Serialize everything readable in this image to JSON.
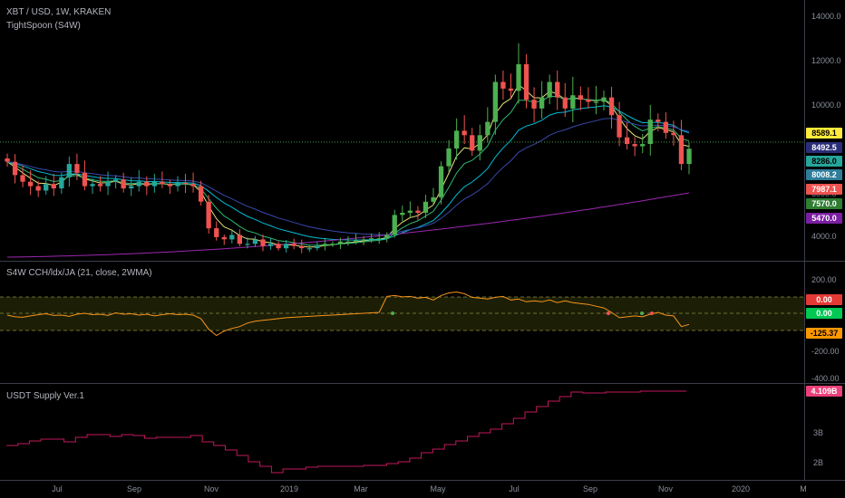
{
  "main_pane": {
    "title": "XBT / USD, 1W, KRAKEN",
    "indicator": "TightSpoon (S4W)",
    "y_ticks": [
      "14000.0",
      "12000.0",
      "10000.0",
      "6000.0",
      "4000.0"
    ],
    "price_tags": [
      {
        "label": "8589.1",
        "bg": "#ffeb3b",
        "fg": "#000000"
      },
      {
        "label": "8492.5",
        "bg": "#2a2e7a",
        "fg": "#ffffff"
      },
      {
        "label": "8286.0",
        "bg": "#26a69a",
        "fg": "#000000"
      },
      {
        "label": "8008.2",
        "bg": "#2e7d9a",
        "fg": "#ffffff"
      },
      {
        "label": "7987.1",
        "bg": "#ef5350",
        "fg": "#ffffff"
      },
      {
        "label": "7570.0",
        "bg": "#2e7d32",
        "fg": "#ffffff"
      },
      {
        "label": "5470.0",
        "bg": "#7b1fa2",
        "fg": "#ffffff"
      }
    ]
  },
  "osc_pane": {
    "title": "S4W CCH/ldx/JA (21, close, 2WMA)",
    "y_ticks": [
      "200.00",
      "-200.00",
      "-400.00"
    ],
    "tags": [
      {
        "label": "0.00",
        "bg": "#e53935",
        "fg": "#ffffff"
      },
      {
        "label": "0.00",
        "bg": "#00c853",
        "fg": "#ffffff"
      },
      {
        "label": "-125.37",
        "bg": "#ff9800",
        "fg": "#000000"
      }
    ]
  },
  "supply_pane": {
    "title": "USDT Supply Ver.1",
    "y_ticks": [
      "3B",
      "2B"
    ],
    "tag": {
      "label": "4.109B",
      "bg": "#ec407a",
      "fg": "#ffffff"
    }
  },
  "x_axis": [
    "Jul",
    "Sep",
    "Nov",
    "2019",
    "Mar",
    "May",
    "Jul",
    "Sep",
    "Nov",
    "2020",
    "M"
  ],
  "colors": {
    "up": "#26a69a",
    "up_bright": "#4caf50",
    "down": "#ef5350",
    "ma_yellow": "#e6e07a",
    "ma_green": "#2eb872",
    "ma_teal": "#00bcd4",
    "ma_blue": "#3949ab",
    "ma_purple": "#9c27b0",
    "osc_line": "#f7931a",
    "supply_line": "#c2185b"
  }
}
